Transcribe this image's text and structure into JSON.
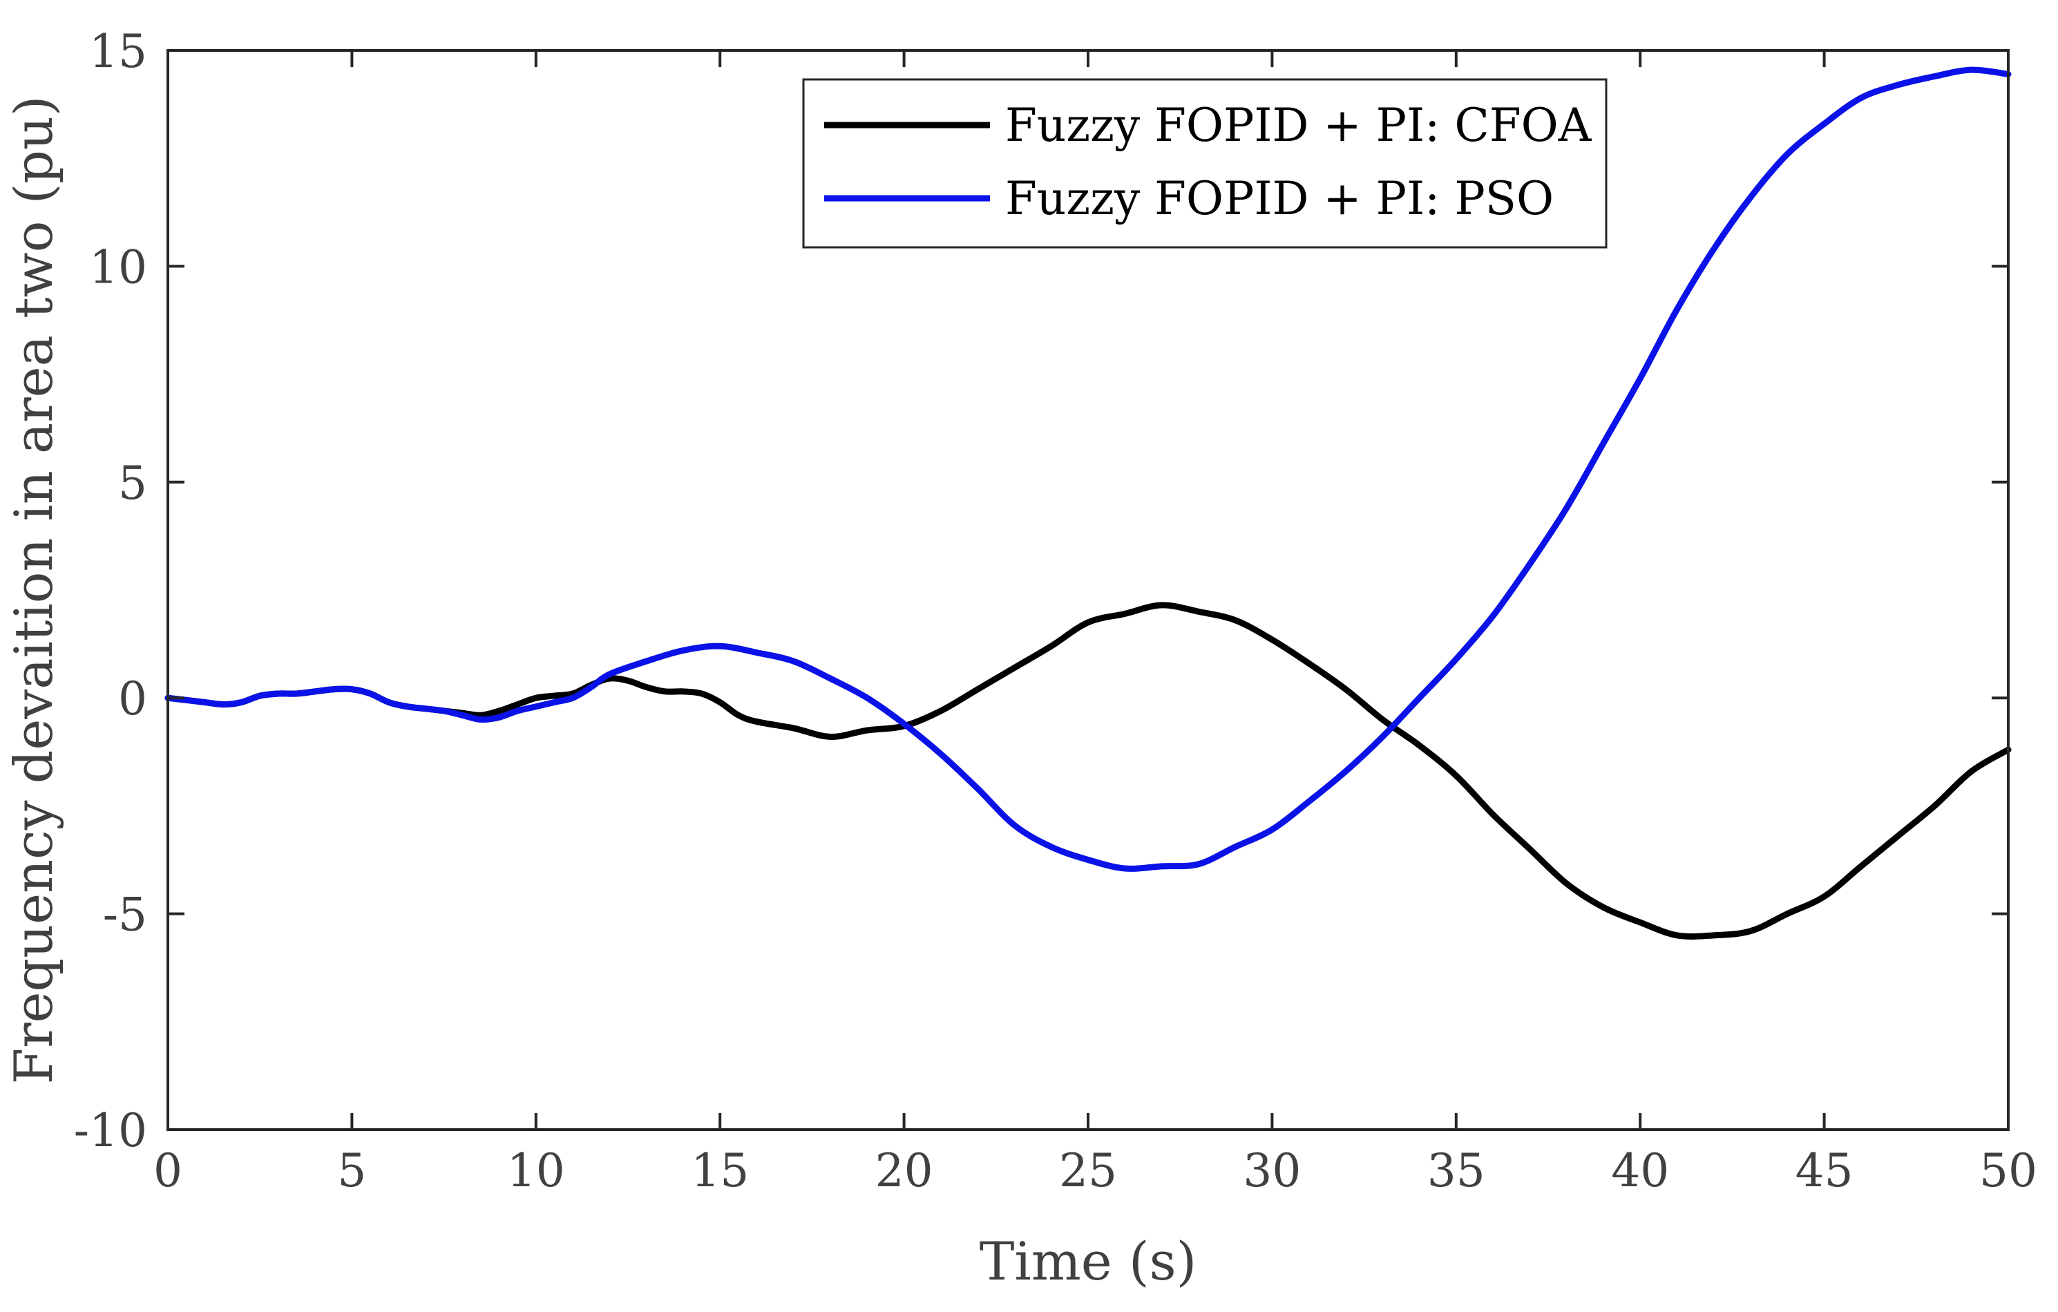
{
  "chart_data": {
    "type": "line",
    "title": "",
    "xlabel": "Time (s)",
    "ylabel": "Frequency devaition in area two (pu)",
    "xlim": [
      0,
      50
    ],
    "ylim": [
      -10,
      15
    ],
    "xticks": [
      0,
      5,
      10,
      15,
      20,
      25,
      30,
      35,
      40,
      45,
      50
    ],
    "yticks": [
      -10,
      -5,
      0,
      5,
      10,
      15
    ],
    "xtick_labels": [
      "0",
      "5",
      "10",
      "15",
      "20",
      "25",
      "30",
      "35",
      "40",
      "45",
      "50"
    ],
    "ytick_labels": [
      "-10",
      "-5",
      "0",
      "5",
      "10",
      "15"
    ],
    "grid": false,
    "legend_position": "top-right",
    "series": [
      {
        "name": "Fuzzy FOPID + PI: CFOA",
        "color": "#000000",
        "x": [
          0,
          0.5,
          1,
          1.5,
          2,
          2.5,
          3,
          3.5,
          4,
          4.5,
          5,
          5.5,
          6,
          6.5,
          7,
          7.5,
          8,
          8.5,
          9,
          9.5,
          10,
          10.5,
          11,
          11.5,
          12,
          12.5,
          13,
          13.5,
          14,
          14.5,
          15,
          15.5,
          16,
          17,
          18,
          19,
          20,
          21,
          22,
          23,
          24,
          25,
          26,
          27,
          28,
          29,
          30,
          31,
          32,
          33,
          34,
          35,
          36,
          37,
          38,
          39,
          40,
          41,
          42,
          43,
          44,
          45,
          46,
          47,
          48,
          49,
          50
        ],
        "y": [
          0,
          -0.05,
          -0.1,
          -0.15,
          -0.1,
          0.05,
          0.1,
          0.1,
          0.15,
          0.2,
          0.2,
          0.1,
          -0.1,
          -0.2,
          -0.25,
          -0.3,
          -0.35,
          -0.4,
          -0.3,
          -0.15,
          0,
          0.05,
          0.1,
          0.3,
          0.45,
          0.4,
          0.25,
          0.15,
          0.15,
          0.1,
          -0.1,
          -0.4,
          -0.55,
          -0.7,
          -0.9,
          -0.75,
          -0.65,
          -0.3,
          0.2,
          0.7,
          1.2,
          1.75,
          1.95,
          2.15,
          2.0,
          1.8,
          1.35,
          0.8,
          0.2,
          -0.5,
          -1.1,
          -1.8,
          -2.7,
          -3.5,
          -4.3,
          -4.85,
          -5.2,
          -5.5,
          -5.5,
          -5.4,
          -5.0,
          -4.6,
          -3.9,
          -3.2,
          -2.5,
          -1.7,
          -1.2
        ]
      },
      {
        "name": "Fuzzy FOPID + PI: PSO",
        "color": "#0a12e8",
        "x": [
          0,
          0.5,
          1,
          1.5,
          2,
          2.5,
          3,
          3.5,
          4,
          4.5,
          5,
          5.5,
          6,
          6.5,
          7,
          7.5,
          8,
          8.5,
          9,
          9.5,
          10,
          10.5,
          11,
          11.5,
          12,
          13,
          14,
          15,
          16,
          17,
          18,
          19,
          20,
          21,
          22,
          23,
          24,
          25,
          26,
          27,
          28,
          29,
          30,
          31,
          32,
          33,
          34,
          35,
          36,
          37,
          38,
          39,
          40,
          41,
          42,
          43,
          44,
          45,
          46,
          47,
          48,
          49,
          50
        ],
        "y": [
          0,
          -0.05,
          -0.1,
          -0.15,
          -0.1,
          0.05,
          0.1,
          0.1,
          0.15,
          0.2,
          0.2,
          0.1,
          -0.1,
          -0.2,
          -0.25,
          -0.3,
          -0.4,
          -0.5,
          -0.45,
          -0.3,
          -0.2,
          -0.1,
          0.0,
          0.25,
          0.55,
          0.85,
          1.1,
          1.2,
          1.05,
          0.85,
          0.45,
          0.0,
          -0.6,
          -1.3,
          -2.1,
          -2.95,
          -3.45,
          -3.75,
          -3.95,
          -3.9,
          -3.85,
          -3.45,
          -3.05,
          -2.4,
          -1.7,
          -0.9,
          0.0,
          0.9,
          1.9,
          3.1,
          4.4,
          5.9,
          7.4,
          9.0,
          10.4,
          11.6,
          12.6,
          13.3,
          13.9,
          14.2,
          14.4,
          14.55,
          14.45
        ]
      }
    ]
  }
}
